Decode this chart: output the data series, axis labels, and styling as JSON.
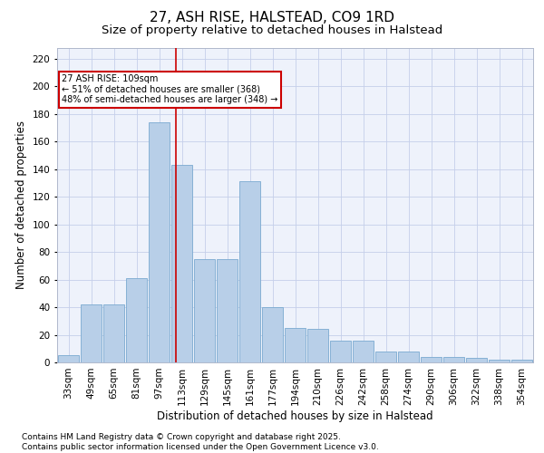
{
  "title": "27, ASH RISE, HALSTEAD, CO9 1RD",
  "subtitle": "Size of property relative to detached houses in Halstead",
  "xlabel": "Distribution of detached houses by size in Halstead",
  "ylabel": "Number of detached properties",
  "categories": [
    "33sqm",
    "49sqm",
    "65sqm",
    "81sqm",
    "97sqm",
    "113sqm",
    "129sqm",
    "145sqm",
    "161sqm",
    "177sqm",
    "194sqm",
    "210sqm",
    "226sqm",
    "242sqm",
    "258sqm",
    "274sqm",
    "290sqm",
    "306sqm",
    "322sqm",
    "338sqm",
    "354sqm"
  ],
  "values": [
    5,
    42,
    42,
    61,
    174,
    143,
    75,
    75,
    131,
    40,
    25,
    24,
    16,
    16,
    8,
    8,
    4,
    4,
    3,
    2,
    2
  ],
  "bar_color": "#b8cfe8",
  "bar_edge_color": "#7aaad0",
  "background_color": "#eef2fb",
  "grid_color": "#c5cfea",
  "vline_x": 4.72,
  "vline_color": "#cc0000",
  "ylim": [
    0,
    228
  ],
  "yticks": [
    0,
    20,
    40,
    60,
    80,
    100,
    120,
    140,
    160,
    180,
    200,
    220
  ],
  "footer_text": "Contains HM Land Registry data © Crown copyright and database right 2025.\nContains public sector information licensed under the Open Government Licence v3.0.",
  "title_fontsize": 11,
  "subtitle_fontsize": 9.5,
  "tick_fontsize": 7.5,
  "ylabel_fontsize": 8.5,
  "xlabel_fontsize": 8.5,
  "footer_fontsize": 6.5
}
